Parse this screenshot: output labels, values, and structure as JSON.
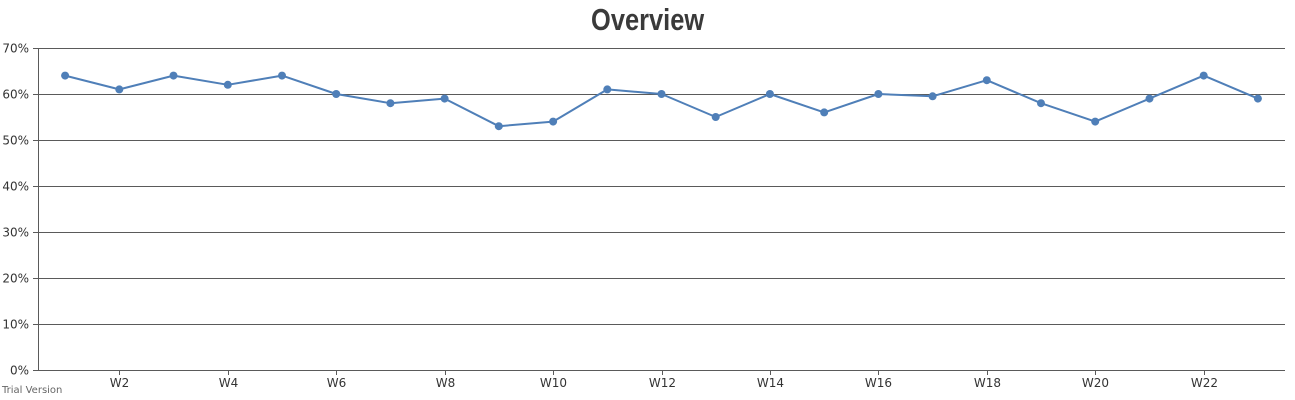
{
  "chart_data": {
    "type": "line",
    "title": "Overview",
    "xlabel": "",
    "ylabel": "",
    "x": [
      "W1",
      "W2",
      "W3",
      "W4",
      "W5",
      "W6",
      "W7",
      "W8",
      "W9",
      "W10",
      "W11",
      "W12",
      "W13",
      "W14",
      "W15",
      "W16",
      "W17",
      "W18",
      "W19",
      "W20",
      "W21",
      "W22",
      "W23"
    ],
    "x_tick_labels": [
      "W2",
      "W4",
      "W6",
      "W8",
      "W10",
      "W12",
      "W14",
      "W16",
      "W18",
      "W20",
      "W22"
    ],
    "y_tick_labels": [
      "0%",
      "10%",
      "20%",
      "30%",
      "40%",
      "50%",
      "60%",
      "70%"
    ],
    "ylim": [
      0,
      70
    ],
    "y_unit": "%",
    "grid": "horizontal",
    "series": [
      {
        "values": [
          64,
          61,
          64,
          62,
          64,
          60,
          58,
          59,
          53,
          54,
          61,
          60,
          55,
          60,
          56,
          60,
          59.5,
          63,
          58,
          54,
          59,
          64,
          59
        ]
      }
    ],
    "colors": {
      "line": "#4f7fb8",
      "marker": "#4f7fb8",
      "grid": "#5a5a5a",
      "axis": "#5a5a5a"
    }
  },
  "watermark": "Trial Version"
}
